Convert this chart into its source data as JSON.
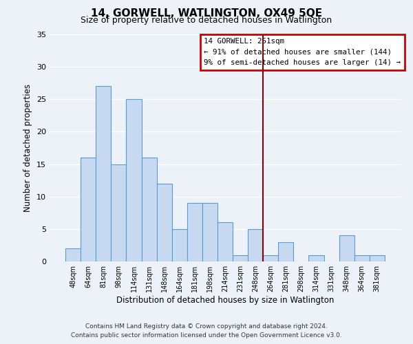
{
  "title": "14, GORWELL, WATLINGTON, OX49 5QE",
  "subtitle": "Size of property relative to detached houses in Watlington",
  "xlabel": "Distribution of detached houses by size in Watlington",
  "ylabel": "Number of detached properties",
  "bin_labels": [
    "48sqm",
    "64sqm",
    "81sqm",
    "98sqm",
    "114sqm",
    "131sqm",
    "148sqm",
    "164sqm",
    "181sqm",
    "198sqm",
    "214sqm",
    "231sqm",
    "248sqm",
    "264sqm",
    "281sqm",
    "298sqm",
    "314sqm",
    "331sqm",
    "348sqm",
    "364sqm",
    "381sqm"
  ],
  "bar_heights": [
    2,
    16,
    27,
    15,
    25,
    16,
    12,
    5,
    9,
    9,
    6,
    1,
    5,
    1,
    3,
    0,
    1,
    0,
    4,
    1,
    1
  ],
  "bar_color": "#c6d9f0",
  "bar_edge_color": "#5b9bd5",
  "vline_color": "#8b0000",
  "legend_title": "14 GORWELL: 251sqm",
  "legend_line1": "← 91% of detached houses are smaller (144)",
  "legend_line2": "9% of semi-detached houses are larger (14) →",
  "legend_box_color": "#cc0000",
  "ylim": [
    0,
    35
  ],
  "yticks": [
    0,
    5,
    10,
    15,
    20,
    25,
    30,
    35
  ],
  "footer_line1": "Contains HM Land Registry data © Crown copyright and database right 2024.",
  "footer_line2": "Contains public sector information licensed under the Open Government Licence v3.0.",
  "background_color": "#edf2f8",
  "grid_color": "#ffffff"
}
